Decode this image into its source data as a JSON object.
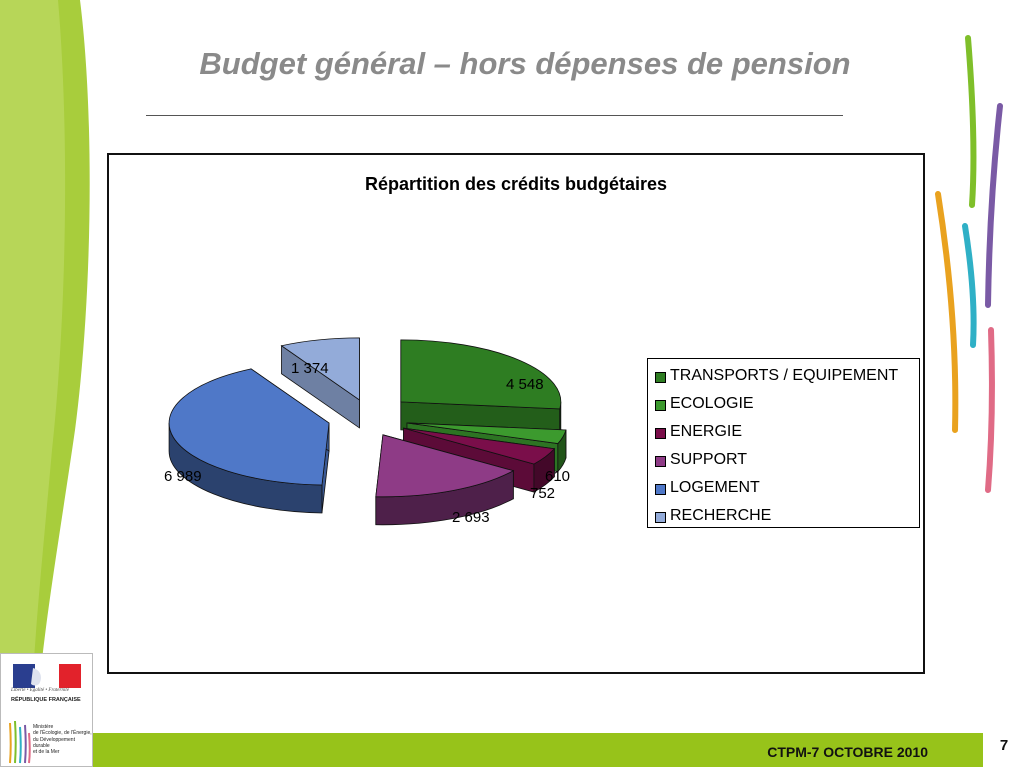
{
  "slide": {
    "title": "Budget général – hors dépenses de pension",
    "footer": "CTPM-7 OCTOBRE 2010",
    "page_number": "7"
  },
  "logo": {
    "motto": "Liberté • Égalité • Fraternité",
    "republic": "RÉPUBLIQUE FRANÇAISE",
    "ministry_lines": [
      "Ministère",
      "de l'Écologie, de l'Énergie,",
      "du Développement",
      "durable",
      "et de la Mer"
    ]
  },
  "chart_data": {
    "type": "pie",
    "style": "3d-exploded",
    "title": "Répartition des crédits budgétaires",
    "legend_position": "right",
    "categories": [
      "TRANSPORTS / EQUIPEMENT",
      "ECOLOGIE",
      "ENERGIE",
      "SUPPORT",
      "LOGEMENT",
      "RECHERCHE"
    ],
    "values": [
      4548,
      610,
      752,
      2693,
      6989,
      1374
    ],
    "value_labels": [
      "4 548",
      "610",
      "752",
      "2 693",
      "6 989",
      "1 374"
    ],
    "colors": [
      "#2e7d22",
      "#3c9a2e",
      "#7a0e4a",
      "#8e3b86",
      "#4f78c8",
      "#93abd9"
    ]
  },
  "colors": {
    "title": "#8a8a8a",
    "footer_bar": "#97c31a",
    "left_wave": "#a8cd3c"
  }
}
